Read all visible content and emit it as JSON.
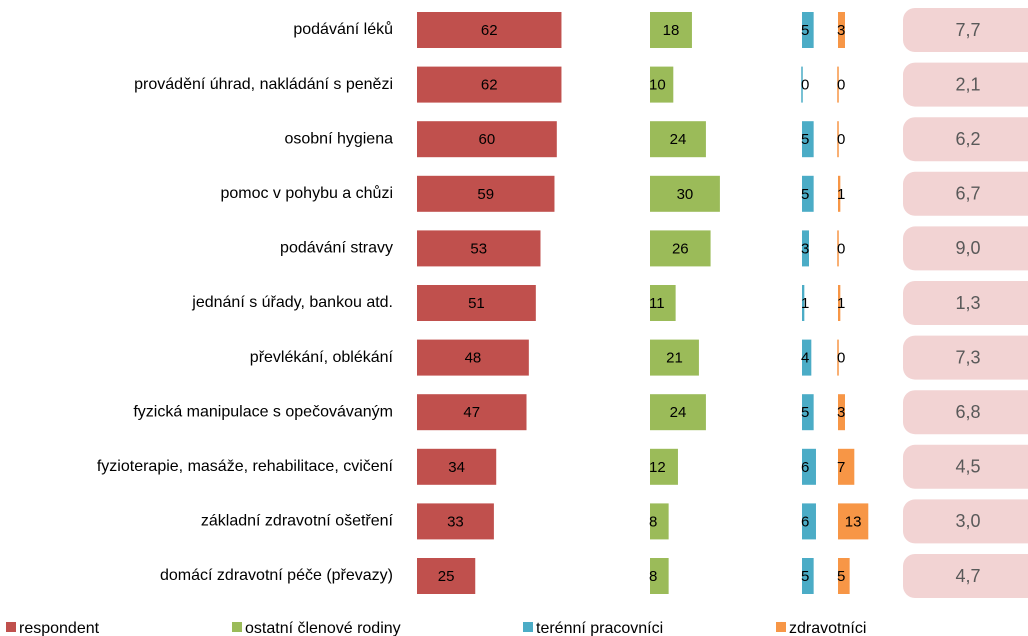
{
  "chart_data": {
    "type": "bar",
    "orientation": "horizontal",
    "categories": [
      "podávání léků",
      "provádění úhrad, nakládání s penězi",
      "osobní hygiena",
      "pomoc v pohybu a chůzi",
      "podávání stravy",
      "jednání s úřady, bankou atd.",
      "převlékání, oblékání",
      "fyzická manipulace s opečovávaným",
      "fyzioterapie, masáže, rehabilitace, cvičení",
      "základní zdravotní ošetření",
      "domácí zdravotní péče (převazy)"
    ],
    "series": [
      {
        "name": "respondent",
        "color": "#c0504d",
        "values": [
          62,
          62,
          60,
          59,
          53,
          51,
          48,
          47,
          34,
          33,
          25
        ]
      },
      {
        "name": "ostatní členové rodiny",
        "color": "#9bbb59",
        "values": [
          18,
          10,
          24,
          30,
          26,
          11,
          21,
          24,
          12,
          8,
          8
        ]
      },
      {
        "name": "terénní pracovníci",
        "color": "#4bacc6",
        "values": [
          5,
          0,
          5,
          5,
          3,
          1,
          4,
          5,
          6,
          6,
          5
        ]
      },
      {
        "name": "zdravotníci",
        "color": "#f79646",
        "values": [
          3,
          0,
          0,
          1,
          0,
          1,
          0,
          3,
          7,
          13,
          5
        ]
      }
    ],
    "boxes": {
      "color": "#f2d3d3",
      "values": [
        7.7,
        2.1,
        6.2,
        6.7,
        9.0,
        1.3,
        7.3,
        6.8,
        4.5,
        3.0,
        4.7
      ],
      "value_labels": [
        "7,7",
        "2,1",
        "6,2",
        "6,7",
        "9,0",
        "1,3",
        "7,3",
        "6,8",
        "4,5",
        "3,0",
        "4,7"
      ]
    }
  }
}
